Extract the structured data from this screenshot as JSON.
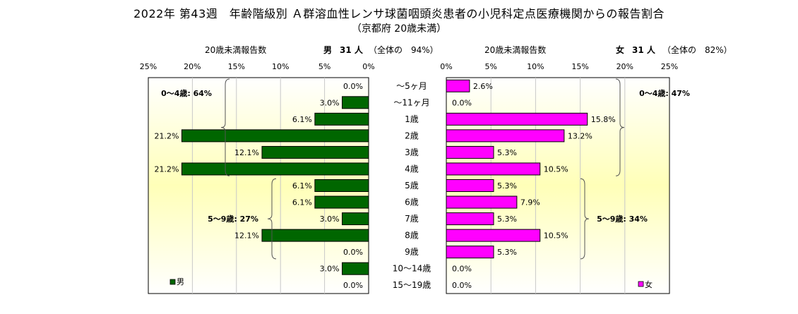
{
  "title": "2022年 第43週　年齢階級別 Ａ群溶血性レンサ球菌咽頭炎患者の小児科定点医療機関からの報告割合",
  "subtitle": "（京都府 20歳未満）",
  "chart_data": {
    "type": "bar",
    "orientation": "horizontal",
    "categories": [
      "～5ヶ月",
      "～11ヶ月",
      "1歳",
      "2歳",
      "3歳",
      "4歳",
      "5歳",
      "6歳",
      "7歳",
      "8歳",
      "9歳",
      "10～14歳",
      "15～19歳"
    ],
    "tick_labels": [
      "0%",
      "5%",
      "10%",
      "15%",
      "20%",
      "25%"
    ],
    "xlim": [
      0,
      25
    ],
    "grid": true,
    "series": [
      {
        "name": "男",
        "axis_label": "20歳未満報告数",
        "summary_sex": "男",
        "summary_count": "31 人",
        "summary_share": "（全体の　94%）",
        "color": "#006600",
        "values": [
          0.0,
          3.0,
          6.1,
          21.2,
          12.1,
          21.2,
          6.1,
          6.1,
          3.0,
          12.1,
          0.0,
          3.0,
          0.0
        ],
        "value_labels": [
          "0.0%",
          "3.0%",
          "6.1%",
          "21.2%",
          "12.1%",
          "21.2%",
          "6.1%",
          "6.1%",
          "3.0%",
          "12.1%",
          "0.0%",
          "3.0%",
          "0.0%"
        ],
        "groups": [
          {
            "label": "0～4歳: 64%",
            "from": 0,
            "to": 5
          },
          {
            "label": "5～9歳: 27%",
            "from": 6,
            "to": 10
          }
        ],
        "legend": "男"
      },
      {
        "name": "女",
        "axis_label": "20歳未満報告数",
        "summary_sex": "女",
        "summary_count": "31 人",
        "summary_share": "（全体の　82%）",
        "color": "#ff00ff",
        "values": [
          2.6,
          0.0,
          15.8,
          13.2,
          5.3,
          10.5,
          5.3,
          7.9,
          5.3,
          10.5,
          5.3,
          0.0,
          0.0
        ],
        "value_labels": [
          "2.6%",
          "0.0%",
          "15.8%",
          "13.2%",
          "5.3%",
          "10.5%",
          "5.3%",
          "7.9%",
          "5.3%",
          "10.5%",
          "5.3%",
          "0.0%",
          "0.0%"
        ],
        "groups": [
          {
            "label": "0～4歳: 47%",
            "from": 0,
            "to": 5
          },
          {
            "label": "5～9歳: 34%",
            "from": 6,
            "to": 10
          }
        ],
        "legend": "女"
      }
    ]
  }
}
